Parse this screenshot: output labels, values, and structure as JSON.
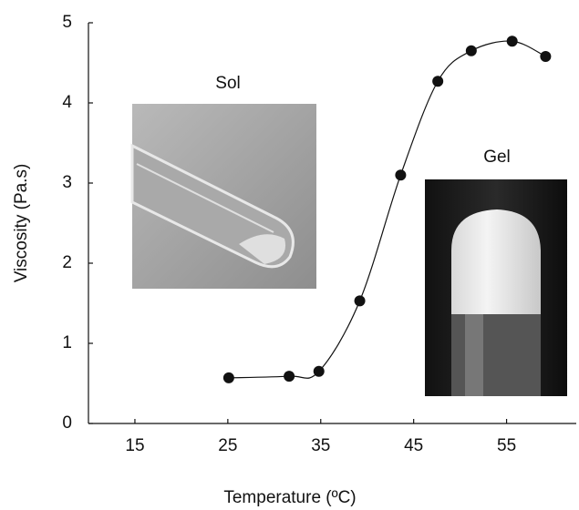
{
  "chart_data": {
    "type": "scatter",
    "x_label": "Temperature (ºC)",
    "y_label": "Viscosity (Pa.s)",
    "x": [
      25.1,
      31.6,
      34.8,
      39.2,
      43.6,
      47.6,
      51.2,
      55.6,
      59.2
    ],
    "values": [
      0.57,
      0.59,
      0.65,
      1.53,
      3.1,
      4.27,
      4.65,
      4.77,
      4.58
    ],
    "color": "#111111",
    "smooth_line": true,
    "xlim": [
      10,
      62.5
    ],
    "xticks": [
      15,
      25,
      35,
      45,
      55
    ],
    "ylim": [
      0,
      5
    ],
    "yticks": [
      0,
      1,
      2,
      3,
      4,
      5
    ],
    "annotations": [
      "Sol",
      "Gel"
    ]
  }
}
